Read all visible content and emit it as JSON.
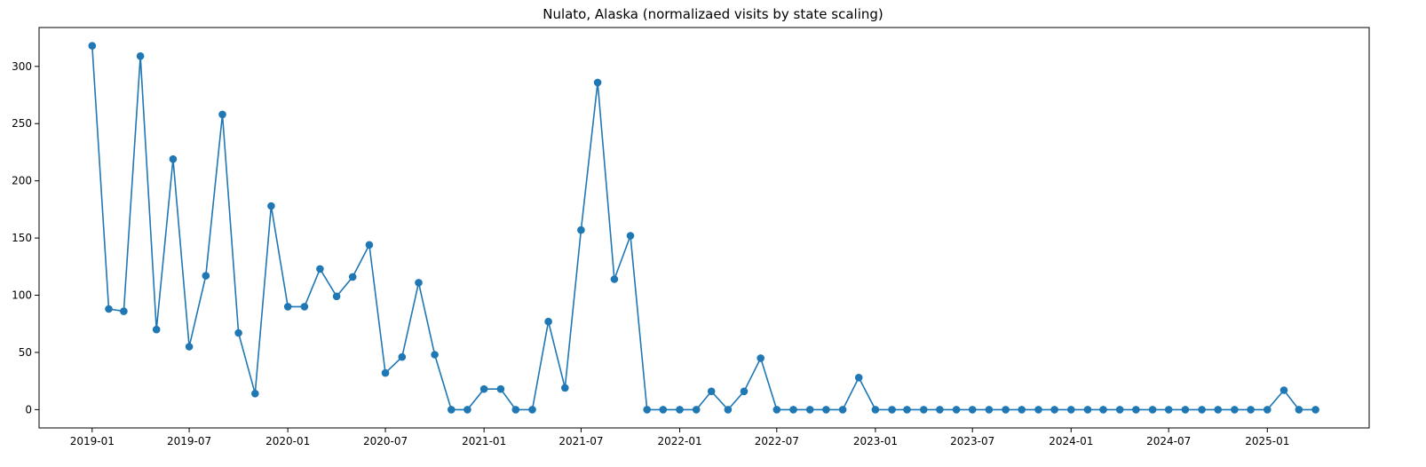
{
  "chart_data": {
    "type": "line",
    "title": "Nulato, Alaska (normalizaed visits by state scaling)",
    "xlabel": "",
    "ylabel": "",
    "x_start": "2019-01",
    "x_end": "2025-03",
    "xlim": [
      "2018-09-24",
      "2025-07-10"
    ],
    "ylim": [
      -16,
      334
    ],
    "x_ticks": [
      "2019-01",
      "2019-07",
      "2020-01",
      "2020-07",
      "2021-01",
      "2021-07",
      "2022-01",
      "2022-07",
      "2023-01",
      "2023-07",
      "2024-01",
      "2024-07",
      "2025-01"
    ],
    "y_ticks": [
      0,
      50,
      100,
      150,
      200,
      250,
      300
    ],
    "grid": false,
    "marker": "circle",
    "series_color": "#1f77b4",
    "series": [
      {
        "values": [
          318,
          88,
          86,
          309,
          70,
          219,
          55,
          117,
          258,
          67,
          14,
          178,
          90,
          90,
          123,
          99,
          116,
          144,
          32,
          46,
          111,
          48,
          0,
          0,
          18,
          18,
          0,
          0,
          77,
          19,
          157,
          286,
          114,
          152,
          0,
          0,
          0,
          0,
          16,
          0,
          16,
          45,
          0,
          0,
          0,
          0,
          0,
          28,
          0,
          0,
          0,
          0,
          0,
          0,
          0,
          0,
          0,
          0,
          0,
          0,
          0,
          0,
          0,
          0,
          0,
          0,
          0,
          0,
          0,
          0,
          0,
          0,
          0,
          17,
          0,
          0
        ]
      }
    ]
  }
}
